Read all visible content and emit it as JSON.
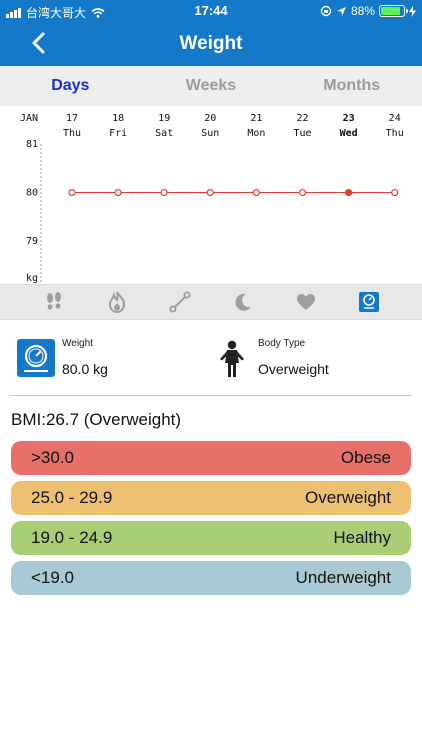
{
  "status_bar": {
    "carrier": "台湾大哥大",
    "time": "17:44",
    "battery": "88%",
    "battery_level": 0.88
  },
  "nav": {
    "title": "Weight"
  },
  "tabs": [
    {
      "label": "Days",
      "active": true
    },
    {
      "label": "Weeks",
      "active": false
    },
    {
      "label": "Months",
      "active": false
    }
  ],
  "chart_data": {
    "type": "line",
    "month_label": "JAN",
    "x": [
      "17",
      "18",
      "19",
      "20",
      "21",
      "22",
      "23",
      "24"
    ],
    "weekdays": [
      "Thu",
      "Fri",
      "Sat",
      "Sun",
      "Mon",
      "Tue",
      "Wed",
      "Thu"
    ],
    "selected_index": 6,
    "yticks": [
      "81",
      "80",
      "79"
    ],
    "ylabel": "kg",
    "ylim": [
      78.2,
      81
    ],
    "series": [
      {
        "values": [
          80,
          80,
          80,
          80,
          80,
          80,
          80,
          80
        ]
      }
    ],
    "line_color": "#d9403a"
  },
  "categories": [
    {
      "icon": "footsteps-icon",
      "active": false
    },
    {
      "icon": "flame-icon",
      "active": false
    },
    {
      "icon": "dumbbell-icon",
      "active": false
    },
    {
      "icon": "moon-icon",
      "active": false
    },
    {
      "icon": "heart-icon",
      "active": false
    },
    {
      "icon": "scale-icon",
      "active": true
    }
  ],
  "weight": {
    "label": "Weight",
    "value": "80.0 kg"
  },
  "body_type": {
    "label": "Body Type",
    "value": "Overweight"
  },
  "bmi": {
    "text": "BMI:26.7 (Overweight)"
  },
  "bmi_scale": [
    {
      "range": ">30.0",
      "label": "Obese",
      "color": "#e8706a"
    },
    {
      "range": "25.0 - 29.9",
      "label": "Overweight",
      "color": "#efc072"
    },
    {
      "range": "19.0 - 24.9",
      "label": "Healthy",
      "color": "#a9cf76"
    },
    {
      "range": "<19.0",
      "label": "Underweight",
      "color": "#a9c9d4"
    }
  ]
}
